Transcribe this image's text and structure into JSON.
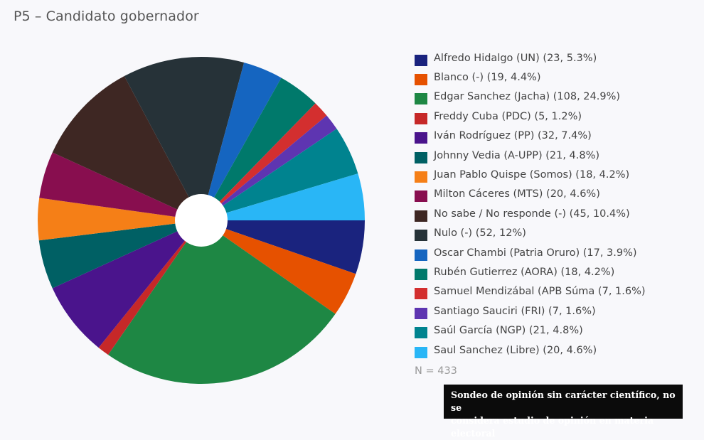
{
  "title": "P5 – Candidato gobernador",
  "n_label": "N = 433",
  "disclaimer": {
    "line1": "Sondeo de opinión sin carácter científico, no se",
    "line2": "considera estudio de opinión en materia electoral"
  },
  "chart_data": {
    "type": "pie",
    "title": "P5 – Candidato gobernador",
    "donut_hole": true,
    "start_angle": "3 o'clock, clockwise",
    "legend_position": "right",
    "total_n": 433,
    "categories": [
      "Alfredo Hidalgo (UN)",
      "Blanco (-)",
      "Edgar Sanchez (Jacha)",
      "Freddy Cuba (PDC)",
      "Iván Rodríguez (PP)",
      "Johnny Vedia (A-UPP)",
      "Juan Pablo Quispe (Somos)",
      "Milton Cáceres (MTS)",
      "No sabe / No responde (-)",
      "Nulo (-)",
      "Oscar Chambi (Patria Oruro)",
      "Rubén Gutierrez (AORA)",
      "Samuel Mendizábal (APB Súma",
      "Santiago Sauciri (FRI)",
      "Saúl García (NGP)",
      "Saul Sanchez (Libre)"
    ],
    "values": [
      23,
      19,
      108,
      5,
      32,
      21,
      18,
      20,
      45,
      52,
      17,
      18,
      7,
      7,
      21,
      20
    ],
    "percentages": [
      5.3,
      4.4,
      24.9,
      1.2,
      7.4,
      4.8,
      4.2,
      4.6,
      10.4,
      12,
      3.9,
      4.2,
      1.6,
      1.6,
      4.8,
      4.6
    ],
    "colors": [
      "#1a237e",
      "#e65100",
      "#1e8744",
      "#c62828",
      "#4a148c",
      "#006064",
      "#f57f17",
      "#880e4f",
      "#3e2723",
      "#263238",
      "#1565c0",
      "#00796b",
      "#d32f2f",
      "#5e35b1",
      "#00838f",
      "#29b6f6"
    ]
  },
  "legend": [
    {
      "label": "Alfredo Hidalgo (UN) (23, 5.3%)"
    },
    {
      "label": "Blanco (-) (19, 4.4%)"
    },
    {
      "label": "Edgar Sanchez (Jacha) (108, 24.9%)"
    },
    {
      "label": "Freddy Cuba (PDC) (5, 1.2%)"
    },
    {
      "label": "Iván Rodríguez (PP) (32, 7.4%)"
    },
    {
      "label": "Johnny Vedia (A-UPP) (21, 4.8%)"
    },
    {
      "label": "Juan Pablo Quispe (Somos) (18, 4.2%)"
    },
    {
      "label": "Milton Cáceres (MTS) (20, 4.6%)"
    },
    {
      "label": "No sabe / No responde (-) (45, 10.4%)"
    },
    {
      "label": "Nulo (-) (52, 12%)"
    },
    {
      "label": "Oscar Chambi (Patria Oruro) (17, 3.9%)"
    },
    {
      "label": "Rubén Gutierrez (AORA) (18, 4.2%)"
    },
    {
      "label": "Samuel Mendizábal (APB Súma (7, 1.6%)"
    },
    {
      "label": "Santiago Sauciri (FRI) (7, 1.6%)"
    },
    {
      "label": "Saúl García (NGP) (21, 4.8%)"
    },
    {
      "label": "Saul Sanchez (Libre) (20, 4.6%)"
    }
  ]
}
